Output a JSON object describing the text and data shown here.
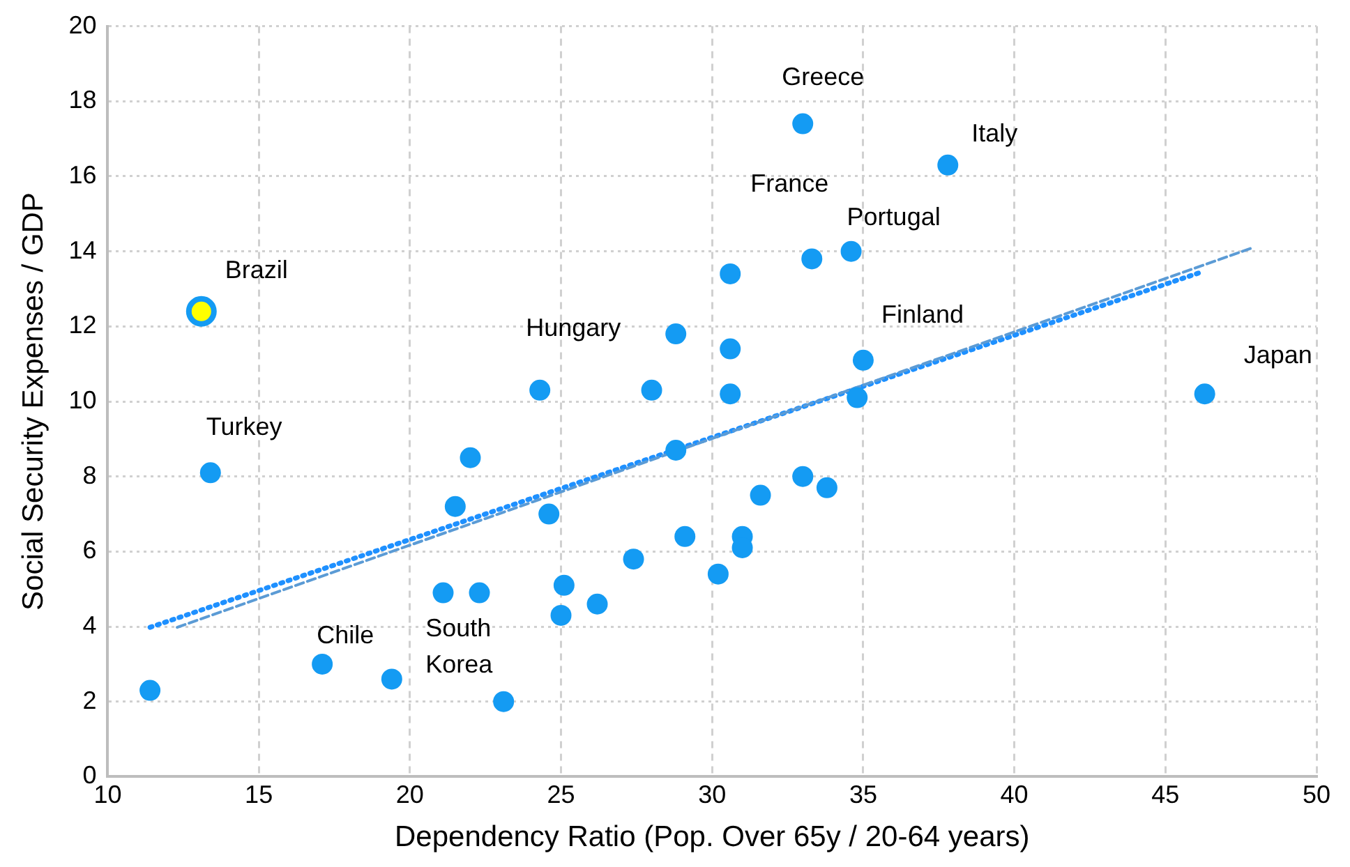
{
  "chart_data": {
    "type": "scatter",
    "xlabel": "Dependency Ratio (Pop. Over 65y / 20-64 years)",
    "ylabel": "Social Security Expenses / GDP",
    "xlim": [
      10,
      50
    ],
    "xticks": [
      10,
      15,
      20,
      25,
      30,
      35,
      40,
      45,
      50
    ],
    "ylim": [
      0,
      20
    ],
    "yticks": [
      0,
      2,
      4,
      6,
      8,
      10,
      12,
      14,
      16,
      18,
      20
    ],
    "grid": true,
    "legend": false,
    "marker": "circle",
    "series": [
      {
        "type": "scatter",
        "color": "#149bf3",
        "x": [
          11.4,
          13.4,
          17.1,
          19.4,
          21.1,
          22.3,
          23.1,
          21.5,
          22.0,
          24.6,
          24.3,
          25.1,
          25.0,
          26.2,
          27.4,
          28.0,
          28.8,
          28.8,
          29.1,
          30.6,
          30.6,
          30.6,
          30.2,
          31.0,
          31.0,
          31.6,
          33.0,
          33.0,
          33.8,
          33.3,
          34.6,
          35.0,
          34.8,
          37.8,
          46.3
        ],
        "values": [
          2.3,
          8.1,
          3.0,
          2.6,
          4.9,
          4.9,
          2.0,
          7.2,
          8.5,
          7.0,
          10.3,
          5.1,
          4.3,
          4.6,
          5.8,
          10.3,
          8.7,
          11.8,
          6.4,
          13.4,
          11.4,
          10.2,
          5.4,
          6.4,
          6.1,
          7.5,
          17.4,
          8.0,
          7.7,
          13.8,
          14.0,
          11.1,
          10.1,
          16.3,
          10.2
        ]
      },
      {
        "type": "scatter",
        "color": "#ffff00",
        "x": [
          13.1
        ],
        "values": [
          12.4
        ]
      },
      {
        "type": "line",
        "color": "#5b9bd5",
        "line_style": "dashed",
        "marker": "none",
        "x": [
          12.3,
          47.9
        ],
        "values": [
          3.98,
          14.1
        ]
      },
      {
        "type": "line",
        "color": "#1e90ff",
        "line_style": "dotted",
        "marker": "none",
        "x": [
          11.4,
          46.2
        ],
        "values": [
          3.98,
          13.45
        ]
      }
    ],
    "annotations": [
      {
        "text": "Brazil",
        "x": 13.1,
        "y": 12.4
      },
      {
        "text": "Turkey",
        "x": 13.4,
        "y": 8.1
      },
      {
        "text": "Chile",
        "x": 17.1,
        "y": 3.0
      },
      {
        "text": "South Korea",
        "x": 23.1,
        "y": 2.0
      },
      {
        "text": "Hungary",
        "x": 24.3,
        "y": 10.3
      },
      {
        "text": "Greece",
        "x": 33.0,
        "y": 17.4
      },
      {
        "text": "France",
        "x": 33.3,
        "y": 13.8
      },
      {
        "text": "Portugal",
        "x": 34.6,
        "y": 14.0
      },
      {
        "text": "Italy",
        "x": 37.8,
        "y": 16.3
      },
      {
        "text": "Finland",
        "x": 35.0,
        "y": 11.1
      },
      {
        "text": "Japan",
        "x": 46.3,
        "y": 10.2
      }
    ]
  }
}
